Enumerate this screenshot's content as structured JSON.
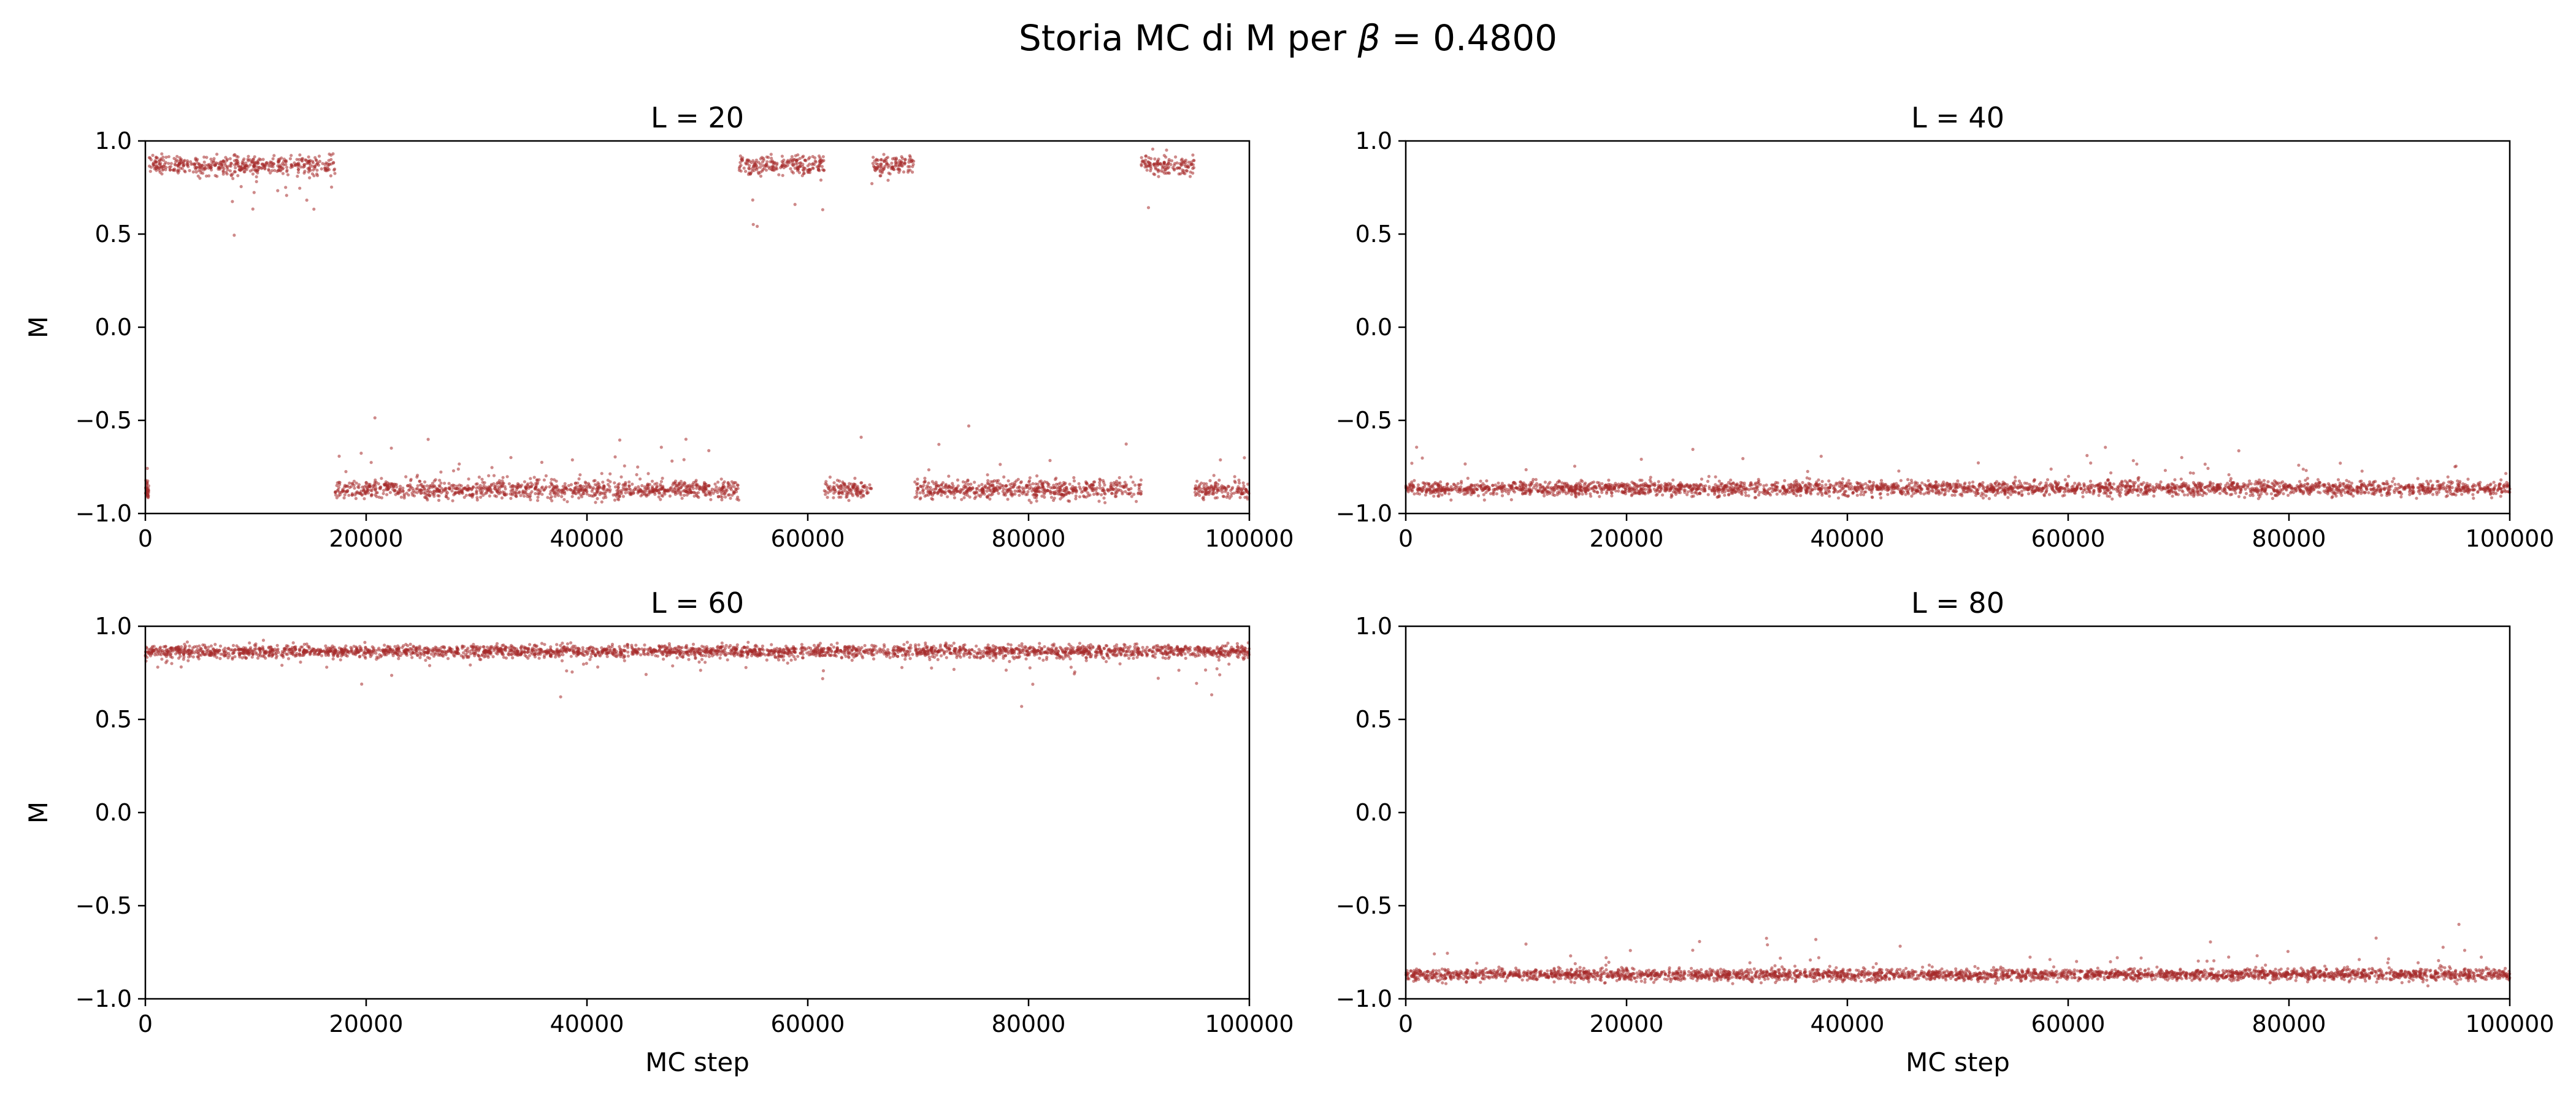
{
  "figure": {
    "title_prefix": "Storia MC di M per ",
    "title_symbol": "β",
    "title_suffix": " = 0.4800"
  },
  "chart_data": [
    {
      "type": "scatter",
      "title": "L = 20",
      "xlabel": "",
      "ylabel": "M",
      "xlim": [
        0,
        100000
      ],
      "ylim": [
        -1.0,
        1.0
      ],
      "xticks": [
        0,
        20000,
        40000,
        60000,
        80000,
        100000
      ],
      "yticks": [
        -1.0,
        -0.5,
        0.0,
        0.5,
        1.0
      ],
      "xtick_labels": [
        "0",
        "20000",
        "40000",
        "60000",
        "80000",
        "100000"
      ],
      "ytick_labels": [
        "−1.0",
        "−0.5",
        "0.0",
        "0.5",
        "1.0"
      ],
      "color": "#a52a2a",
      "grid": false,
      "segments": [
        {
          "x_start": 0,
          "x_end": 300,
          "mean": -0.87,
          "spread": 0.045
        },
        {
          "x_start": 300,
          "x_end": 17200,
          "mean": 0.87,
          "spread": 0.045
        },
        {
          "x_start": 17200,
          "x_end": 53800,
          "mean": -0.87,
          "spread": 0.045
        },
        {
          "x_start": 53800,
          "x_end": 61500,
          "mean": 0.87,
          "spread": 0.045
        },
        {
          "x_start": 61500,
          "x_end": 65800,
          "mean": -0.87,
          "spread": 0.045
        },
        {
          "x_start": 65800,
          "x_end": 69700,
          "mean": 0.87,
          "spread": 0.045
        },
        {
          "x_start": 69700,
          "x_end": 90200,
          "mean": -0.87,
          "spread": 0.045
        },
        {
          "x_start": 90200,
          "x_end": 95000,
          "mean": 0.87,
          "spread": 0.045
        },
        {
          "x_start": 95000,
          "x_end": 100000,
          "mean": -0.87,
          "spread": 0.045
        }
      ]
    },
    {
      "type": "scatter",
      "title": "L = 40",
      "xlabel": "",
      "ylabel": "",
      "xlim": [
        0,
        100000
      ],
      "ylim": [
        -1.0,
        1.0
      ],
      "xticks": [
        0,
        20000,
        40000,
        60000,
        80000,
        100000
      ],
      "yticks": [
        -1.0,
        -0.5,
        0.0,
        0.5,
        1.0
      ],
      "xtick_labels": [
        "0",
        "20000",
        "40000",
        "60000",
        "80000",
        "100000"
      ],
      "ytick_labels": [
        "−1.0",
        "−0.5",
        "0.0",
        "0.5",
        "1.0"
      ],
      "color": "#a52a2a",
      "grid": false,
      "segments": [
        {
          "x_start": 0,
          "x_end": 100000,
          "mean": -0.865,
          "spread": 0.035
        }
      ]
    },
    {
      "type": "scatter",
      "title": "L = 60",
      "xlabel": "MC step",
      "ylabel": "M",
      "xlim": [
        0,
        100000
      ],
      "ylim": [
        -1.0,
        1.0
      ],
      "xticks": [
        0,
        20000,
        40000,
        60000,
        80000,
        100000
      ],
      "yticks": [
        -1.0,
        -0.5,
        0.0,
        0.5,
        1.0
      ],
      "xtick_labels": [
        "0",
        "20000",
        "40000",
        "60000",
        "80000",
        "100000"
      ],
      "ytick_labels": [
        "−1.0",
        "−0.5",
        "0.0",
        "0.5",
        "1.0"
      ],
      "color": "#a52a2a",
      "grid": false,
      "segments": [
        {
          "x_start": 0,
          "x_end": 100000,
          "mean": 0.865,
          "spread": 0.03
        }
      ]
    },
    {
      "type": "scatter",
      "title": "L = 80",
      "xlabel": "MC step",
      "ylabel": "",
      "xlim": [
        0,
        100000
      ],
      "ylim": [
        -1.0,
        1.0
      ],
      "xticks": [
        0,
        20000,
        40000,
        60000,
        80000,
        100000
      ],
      "yticks": [
        -1.0,
        -0.5,
        0.0,
        0.5,
        1.0
      ],
      "xtick_labels": [
        "0",
        "20000",
        "40000",
        "60000",
        "80000",
        "100000"
      ],
      "ytick_labels": [
        "−1.0",
        "−0.5",
        "0.0",
        "0.5",
        "1.0"
      ],
      "color": "#a52a2a",
      "grid": false,
      "segments": [
        {
          "x_start": 0,
          "x_end": 100000,
          "mean": -0.87,
          "spread": 0.028
        }
      ]
    }
  ]
}
